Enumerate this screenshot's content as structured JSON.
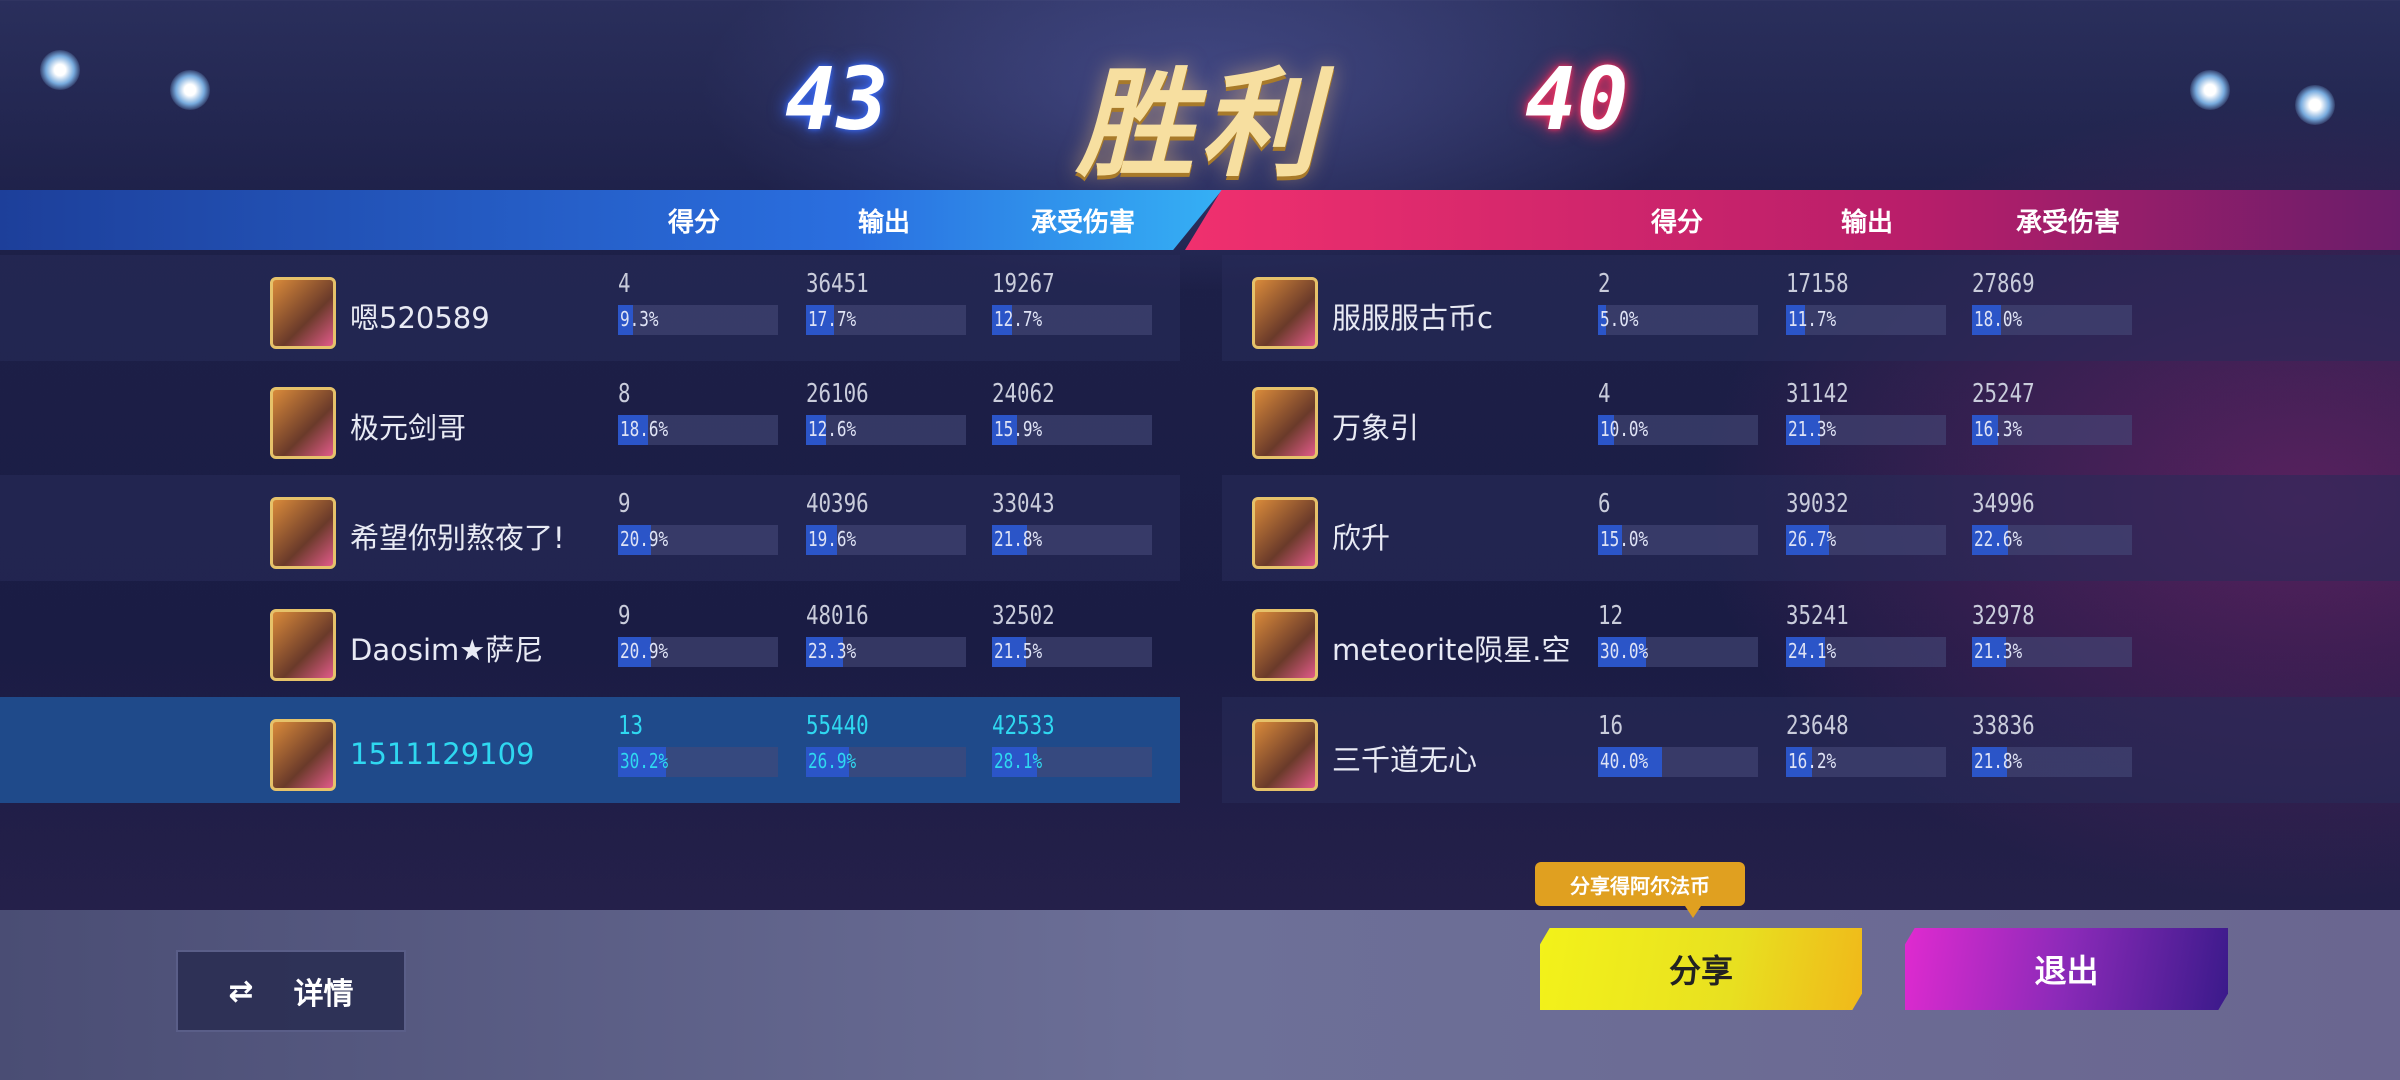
{
  "result": {
    "title": "胜利",
    "blue_score": "43",
    "red_score": "40"
  },
  "columns": [
    "得分",
    "输出",
    "承受伤害"
  ],
  "colors": {
    "blue_team": "#2a6fe0",
    "red_team": "#f0306e",
    "self_highlight": "#2fd8f0",
    "share": "#f3f21a",
    "exit": "#8a2ab8"
  },
  "blue_team": [
    {
      "name": "嗯520589",
      "score": "4",
      "score_pct": "9.3%",
      "output": "36451",
      "output_pct": "17.7%",
      "damage": "19267",
      "damage_pct": "12.7%"
    },
    {
      "name": "极元剑哥",
      "score": "8",
      "score_pct": "18.6%",
      "output": "26106",
      "output_pct": "12.6%",
      "damage": "24062",
      "damage_pct": "15.9%"
    },
    {
      "name": "希望你别熬夜了!",
      "score": "9",
      "score_pct": "20.9%",
      "output": "40396",
      "output_pct": "19.6%",
      "damage": "33043",
      "damage_pct": "21.8%"
    },
    {
      "name": "Daosim★萨尼",
      "score": "9",
      "score_pct": "20.9%",
      "output": "48016",
      "output_pct": "23.3%",
      "damage": "32502",
      "damage_pct": "21.5%"
    },
    {
      "name": "1511129109",
      "score": "13",
      "score_pct": "30.2%",
      "output": "55440",
      "output_pct": "26.9%",
      "damage": "42533",
      "damage_pct": "28.1%",
      "self": true
    }
  ],
  "red_team": [
    {
      "name": "服服服古币c",
      "score": "2",
      "score_pct": "5.0%",
      "output": "17158",
      "output_pct": "11.7%",
      "damage": "27869",
      "damage_pct": "18.0%"
    },
    {
      "name": "万象引",
      "score": "4",
      "score_pct": "10.0%",
      "output": "31142",
      "output_pct": "21.3%",
      "damage": "25247",
      "damage_pct": "16.3%"
    },
    {
      "name": "欣升",
      "score": "6",
      "score_pct": "15.0%",
      "output": "39032",
      "output_pct": "26.7%",
      "damage": "34996",
      "damage_pct": "22.6%"
    },
    {
      "name": "meteorite陨星.空",
      "score": "12",
      "score_pct": "30.0%",
      "output": "35241",
      "output_pct": "24.1%",
      "damage": "32978",
      "damage_pct": "21.3%"
    },
    {
      "name": "三千道无心",
      "score": "16",
      "score_pct": "40.0%",
      "output": "23648",
      "output_pct": "16.2%",
      "damage": "33836",
      "damage_pct": "21.8%"
    }
  ],
  "buttons": {
    "details": "详情",
    "details_icon": "swap-arrows-icon",
    "share": "分享",
    "share_tooltip": "分享得阿尔法币",
    "exit": "退出"
  }
}
